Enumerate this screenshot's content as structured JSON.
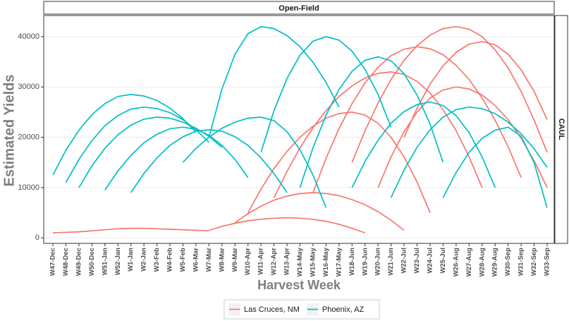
{
  "chart_data": {
    "type": "line",
    "panel_label": "Open-Field",
    "facet_label": "CAUL",
    "x_label": "Harvest Week",
    "y_label": "Estimated Yields",
    "categories": [
      "W47-Dec",
      "W48-Dec",
      "W49-Dec",
      "W50-Dec",
      "W51-Jan",
      "W52-Jan",
      "W1-Jan",
      "W2-Jan",
      "W3-Feb",
      "W4-Feb",
      "W5-Feb",
      "W6-Mar",
      "W7-Mar",
      "W8-Mar",
      "W9-Mar",
      "W10-Apr",
      "W11-Apr",
      "W12-Apr",
      "W13-Apr",
      "W14-May",
      "W15-May",
      "W16-May",
      "W17-May",
      "W18-Jun",
      "W19-Jun",
      "W20-Jun",
      "W21-Jun",
      "W22-Jul",
      "W23-Jul",
      "W24-Jul",
      "W25-Jul",
      "W26-Aug",
      "W27-Aug",
      "W28-Aug",
      "W29-Aug",
      "W30-Sep",
      "W31-Sep",
      "W32-Sep",
      "W33-Sep"
    ],
    "ylim": [
      -1100,
      44200
    ],
    "yticks": [
      0,
      10000,
      20000,
      30000,
      40000
    ],
    "grid": true,
    "legend_position": "bottom",
    "series": [
      {
        "name": "Las Cruces, NM",
        "color": "#F8766D",
        "curves": [
          [
            1000,
            1100,
            1200,
            1400,
            1600,
            1800,
            1900,
            1900,
            1800,
            1700,
            1600,
            1500,
            1400,
            null,
            null,
            null,
            null,
            null,
            null,
            null,
            null,
            null,
            null,
            null,
            null,
            null,
            null,
            null,
            null,
            null,
            null,
            null,
            null,
            null,
            null,
            null,
            null,
            null,
            null
          ],
          [
            null,
            null,
            null,
            null,
            null,
            null,
            null,
            null,
            null,
            null,
            null,
            null,
            1500,
            2300,
            2900,
            3400,
            3700,
            3900,
            4000,
            3900,
            3700,
            3300,
            2700,
            1900,
            1000,
            null,
            null,
            null,
            null,
            null,
            null,
            null,
            null,
            null,
            null,
            null,
            null,
            null,
            null
          ],
          [
            null,
            null,
            null,
            null,
            null,
            null,
            null,
            null,
            null,
            null,
            null,
            null,
            null,
            null,
            3000,
            4800,
            6300,
            7500,
            8300,
            8800,
            9000,
            8800,
            8400,
            7600,
            6600,
            5200,
            3500,
            1500,
            null,
            null,
            null,
            null,
            null,
            null,
            null,
            null,
            null,
            null,
            null
          ],
          [
            null,
            null,
            null,
            null,
            null,
            null,
            null,
            null,
            null,
            null,
            null,
            null,
            null,
            null,
            null,
            5000,
            9700,
            13800,
            17200,
            20000,
            22200,
            23800,
            24700,
            25000,
            24400,
            22800,
            20000,
            16100,
            11100,
            5000,
            null,
            null,
            null,
            null,
            null,
            null,
            null,
            null,
            null
          ],
          [
            null,
            null,
            null,
            null,
            null,
            null,
            null,
            null,
            null,
            null,
            null,
            null,
            null,
            null,
            null,
            null,
            null,
            8000,
            13200,
            17900,
            21900,
            25300,
            28100,
            30200,
            31800,
            32700,
            33000,
            32500,
            31100,
            28800,
            25500,
            21300,
            16100,
            10000,
            null,
            null,
            null,
            null,
            null
          ],
          [
            null,
            null,
            null,
            null,
            null,
            null,
            null,
            null,
            null,
            null,
            null,
            null,
            null,
            null,
            null,
            null,
            null,
            null,
            null,
            null,
            9000,
            15800,
            21700,
            26700,
            30800,
            33900,
            36200,
            37500,
            38000,
            37600,
            36400,
            34300,
            31500,
            27800,
            23400,
            18100,
            12000,
            null,
            null
          ],
          [
            null,
            null,
            null,
            null,
            null,
            null,
            null,
            null,
            null,
            null,
            null,
            null,
            null,
            null,
            null,
            null,
            null,
            null,
            null,
            null,
            null,
            null,
            null,
            15000,
            21300,
            26800,
            31500,
            35300,
            38200,
            40300,
            41600,
            42000,
            41500,
            40000,
            37400,
            33800,
            29100,
            23400,
            17000
          ],
          [
            null,
            null,
            null,
            null,
            null,
            null,
            null,
            null,
            null,
            null,
            null,
            null,
            null,
            null,
            null,
            null,
            null,
            null,
            null,
            null,
            null,
            null,
            null,
            null,
            null,
            10000,
            16100,
            21100,
            25000,
            27800,
            29400,
            30000,
            29600,
            28400,
            26300,
            23500,
            19800,
            15300,
            10000
          ],
          [
            null,
            null,
            null,
            null,
            null,
            null,
            null,
            null,
            null,
            null,
            null,
            null,
            null,
            null,
            null,
            null,
            null,
            null,
            null,
            null,
            null,
            null,
            null,
            null,
            null,
            null,
            null,
            20000,
            25800,
            30600,
            34200,
            36900,
            38500,
            39000,
            38400,
            36500,
            33400,
            29100,
            23500
          ]
        ]
      },
      {
        "name": "Phoenix, AZ",
        "color": "#00BFC4",
        "curves": [
          [
            12500,
            17400,
            21400,
            24500,
            26700,
            28100,
            28500,
            28200,
            27300,
            25800,
            23700,
            21000,
            null,
            null,
            null,
            null,
            null,
            null,
            null,
            null,
            null,
            null,
            null,
            null,
            null,
            null,
            null,
            null,
            null,
            null,
            null,
            null,
            null,
            null,
            null,
            null,
            null,
            null,
            null
          ],
          [
            null,
            11000,
            15600,
            19300,
            22300,
            24300,
            25600,
            26000,
            25700,
            24900,
            23500,
            21500,
            19000,
            null,
            null,
            null,
            null,
            null,
            null,
            null,
            null,
            null,
            null,
            null,
            null,
            null,
            null,
            null,
            null,
            null,
            null,
            null,
            null,
            null,
            null,
            null,
            null,
            null,
            null
          ],
          [
            null,
            null,
            10000,
            14300,
            17800,
            20500,
            22400,
            23600,
            24000,
            23800,
            23000,
            21800,
            20200,
            18000,
            null,
            null,
            null,
            null,
            null,
            null,
            null,
            null,
            null,
            null,
            null,
            null,
            null,
            null,
            null,
            null,
            null,
            null,
            null,
            null,
            null,
            null,
            null,
            null,
            null
          ],
          [
            null,
            null,
            null,
            null,
            9500,
            13300,
            16400,
            18900,
            20600,
            21700,
            22000,
            21600,
            20400,
            18400,
            15600,
            12000,
            null,
            null,
            null,
            null,
            null,
            null,
            null,
            null,
            null,
            null,
            null,
            null,
            null,
            null,
            null,
            null,
            null,
            null,
            null,
            null,
            null,
            null,
            null
          ],
          [
            null,
            null,
            null,
            null,
            null,
            null,
            9000,
            12800,
            15900,
            18400,
            20100,
            21200,
            21500,
            21200,
            20100,
            18400,
            15900,
            12800,
            9000,
            null,
            null,
            null,
            null,
            null,
            null,
            null,
            null,
            null,
            null,
            null,
            null,
            null,
            null,
            null,
            null,
            null,
            null,
            null,
            null
          ],
          [
            null,
            null,
            null,
            null,
            null,
            null,
            null,
            null,
            null,
            null,
            15000,
            17800,
            20000,
            21800,
            23000,
            23800,
            24000,
            23300,
            21100,
            17500,
            12500,
            6000,
            null,
            null,
            null,
            null,
            null,
            null,
            null,
            null,
            null,
            null,
            null,
            null,
            null,
            null,
            null,
            null,
            null
          ],
          [
            null,
            null,
            null,
            null,
            null,
            null,
            null,
            null,
            null,
            null,
            null,
            null,
            20000,
            29600,
            36500,
            40600,
            42000,
            41600,
            40200,
            38000,
            34900,
            30900,
            26000,
            null,
            null,
            null,
            null,
            null,
            null,
            null,
            null,
            null,
            null,
            null,
            null,
            null,
            null,
            null,
            null
          ],
          [
            null,
            null,
            null,
            null,
            null,
            null,
            null,
            null,
            null,
            null,
            null,
            null,
            null,
            null,
            null,
            null,
            17000,
            25300,
            31700,
            36300,
            39100,
            40000,
            39300,
            37100,
            33500,
            28500,
            22000,
            null,
            null,
            null,
            null,
            null,
            null,
            null,
            null,
            null,
            null,
            null,
            null
          ],
          [
            null,
            null,
            null,
            null,
            null,
            null,
            null,
            null,
            null,
            null,
            null,
            null,
            null,
            null,
            null,
            null,
            null,
            null,
            null,
            10000,
            17900,
            24400,
            29500,
            33100,
            35300,
            36000,
            35200,
            32600,
            28400,
            22600,
            15000,
            null,
            null,
            null,
            null,
            null,
            null,
            null,
            null
          ],
          [
            null,
            null,
            null,
            null,
            null,
            null,
            null,
            null,
            null,
            null,
            null,
            null,
            null,
            null,
            null,
            null,
            null,
            null,
            null,
            null,
            null,
            null,
            null,
            10000,
            15200,
            19400,
            22800,
            25100,
            26500,
            27000,
            26300,
            24300,
            20900,
            16100,
            10000,
            null,
            null,
            null,
            null
          ],
          [
            null,
            null,
            null,
            null,
            null,
            null,
            null,
            null,
            null,
            null,
            null,
            null,
            null,
            null,
            null,
            null,
            null,
            null,
            null,
            null,
            null,
            null,
            null,
            null,
            null,
            null,
            8000,
            13500,
            18000,
            21500,
            24000,
            25500,
            26000,
            25700,
            24700,
            23000,
            20700,
            17700,
            14000
          ],
          [
            null,
            null,
            null,
            null,
            null,
            null,
            null,
            null,
            null,
            null,
            null,
            null,
            null,
            null,
            null,
            null,
            null,
            null,
            null,
            null,
            null,
            null,
            null,
            null,
            null,
            null,
            null,
            null,
            null,
            null,
            8000,
            13000,
            17000,
            19800,
            21400,
            22000,
            20200,
            14900,
            6000
          ]
        ]
      }
    ]
  }
}
